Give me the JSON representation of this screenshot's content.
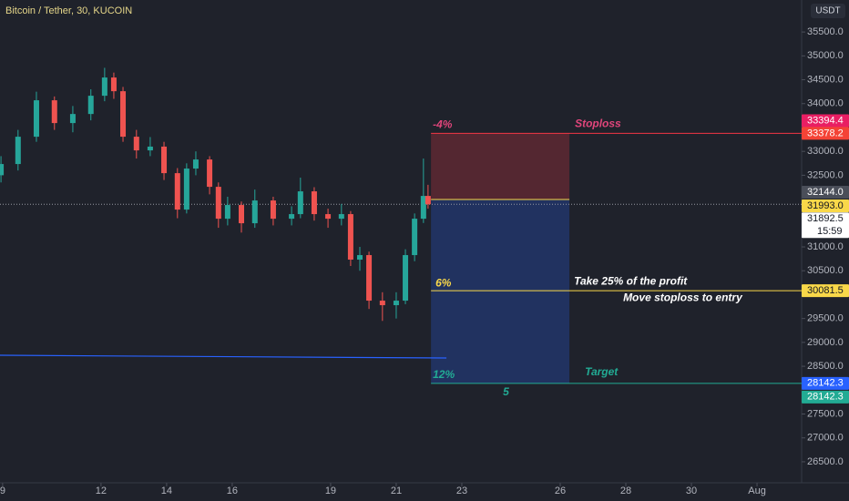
{
  "chart_data": {
    "type": "candlestick",
    "title": "Bitcoin / Tether, 30, KUCOIN",
    "currency": "USDT",
    "xlim": [
      8.92,
      33.36
    ],
    "ylim": [
      26060,
      36170
    ],
    "xticks": [
      9,
      12,
      14,
      16,
      19,
      21,
      23,
      26,
      28,
      30,
      {
        "value": 32,
        "label": "Aug"
      }
    ],
    "yticks": [
      {
        "value": 35500,
        "label": "35500.0"
      },
      {
        "value": 35000,
        "label": "35000.0"
      },
      {
        "value": 34500,
        "label": "34500.0"
      },
      {
        "value": 34000,
        "label": "34000.0"
      },
      {
        "value": 33000,
        "label": "33000.0"
      },
      {
        "value": 32500,
        "label": "32500.0"
      },
      {
        "value": 31000,
        "label": "31000.0"
      },
      {
        "value": 30500,
        "label": "30500.0"
      },
      {
        "value": 29500,
        "label": "29500.0"
      },
      {
        "value": 29000,
        "label": "29000.0"
      },
      {
        "value": 28500,
        "label": "28500.0"
      },
      {
        "value": 27500,
        "label": "27500.0"
      },
      {
        "value": 27000,
        "label": "27000.0"
      },
      {
        "value": 26500,
        "label": "26500.0"
      }
    ],
    "candles": {
      "up_color": "#26a69a",
      "down_color": "#ef5350",
      "x": [
        8.95,
        9.47,
        10.03,
        10.58,
        11.14,
        11.69,
        12.11,
        12.39,
        12.67,
        13.08,
        13.5,
        13.92,
        14.33,
        14.61,
        14.89,
        15.31,
        15.58,
        15.86,
        16.28,
        16.69,
        17.25,
        17.81,
        18.08,
        18.5,
        18.92,
        19.33,
        19.61,
        19.89,
        20.17,
        20.58,
        21.0,
        21.28,
        21.56,
        21.83,
        21.97
      ],
      "open": [
        32500,
        32735,
        33307,
        34070,
        33593,
        33783,
        34165,
        34547,
        34260,
        33307,
        33021,
        33100,
        32544,
        31781,
        32640,
        32830,
        32258,
        31590,
        31877,
        31495,
        31972,
        31590,
        31686,
        32163,
        31686,
        31590,
        31686,
        30733,
        30828,
        29874,
        29779,
        29874,
        30828,
        31590,
        32067
      ],
      "close": [
        32735,
        33307,
        34070,
        33593,
        33783,
        34165,
        34547,
        34260,
        33307,
        33021,
        33100,
        32544,
        31781,
        32640,
        32830,
        32258,
        31590,
        31877,
        31495,
        31972,
        31590,
        31686,
        32163,
        31686,
        31590,
        31686,
        30733,
        30828,
        29874,
        29779,
        29874,
        30828,
        31590,
        32067,
        31892.5
      ],
      "high": [
        32900,
        33450,
        34250,
        34150,
        33950,
        34300,
        34750,
        34650,
        34350,
        33450,
        33300,
        33200,
        32650,
        32750,
        33000,
        32900,
        32350,
        32050,
        31950,
        32200,
        32050,
        31850,
        32450,
        32250,
        31800,
        31900,
        31750,
        31000,
        30900,
        30050,
        30050,
        30950,
        31700,
        32850,
        32300
      ],
      "low": [
        32350,
        32600,
        33200,
        33450,
        33400,
        33650,
        34050,
        34100,
        33200,
        32850,
        32900,
        32400,
        31600,
        31700,
        32500,
        32100,
        31400,
        31450,
        31300,
        31400,
        31450,
        31450,
        31600,
        31550,
        31400,
        31450,
        30600,
        30500,
        29700,
        29450,
        29500,
        29800,
        30700,
        31500,
        31800
      ]
    },
    "trend_line": {
      "x": [
        8.92,
        22.53
      ],
      "values": [
        28730,
        28673
      ],
      "color": "#2962ff"
    },
    "position": {
      "x": [
        22.06,
        26.28
      ],
      "stop": 33378.2,
      "entry": 31993,
      "take_profit_1": 30081.5,
      "target": 28142.3,
      "stop_color": "#f23645",
      "entry_color": "#f9d849",
      "target_color": "#22ab94",
      "stop_pct": "-4%",
      "stop_label": "Stoploss",
      "tp1_pct": "6%",
      "tp1_note": "Take 25% of the profit",
      "tp1_note_2": "Move stoploss to entry",
      "target_pct": "12%",
      "target_label": "Target",
      "bars": "5"
    },
    "price_labels": {
      "values": [
        33394.4,
        33378.2,
        32144,
        31993,
        31892.5,
        30081.5,
        28142.3,
        28142.3
      ],
      "value_labels": [
        "33394.4",
        "33378.2",
        "32144.0",
        "31993.0",
        "31892.5",
        "30081.5",
        "28142.3",
        "28142.3"
      ],
      "colors": [
        "#e91e63",
        "#f44336",
        "#4a4e59",
        "#f9d849",
        "#ffffff",
        "#f9d849",
        "#2962ff",
        "#22ab94"
      ],
      "text_colors": [
        "#ffffff",
        "#ffffff",
        "#ffffff",
        "#131722",
        "#131722",
        "#131722",
        "#ffffff",
        "#ffffff"
      ],
      "countdown": "15:59"
    }
  }
}
